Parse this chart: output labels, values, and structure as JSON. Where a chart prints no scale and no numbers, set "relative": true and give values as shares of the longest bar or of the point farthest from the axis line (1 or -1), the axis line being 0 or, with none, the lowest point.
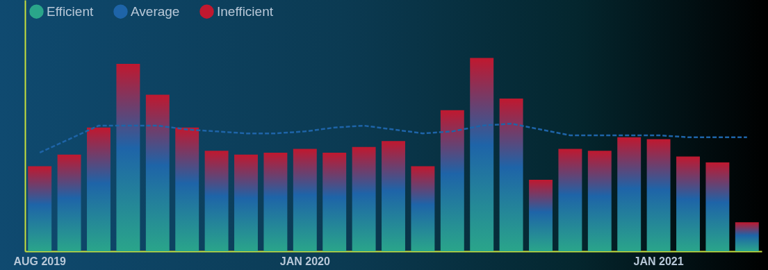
{
  "chart_data": {
    "type": "bar",
    "relative": true,
    "legend": "top left",
    "categories": [
      "AUG 2019",
      null,
      null,
      null,
      null,
      null,
      null,
      null,
      null,
      "JAN 2020",
      null,
      null,
      null,
      null,
      null,
      null,
      null,
      null,
      null,
      null,
      null,
      "JAN 2021",
      null,
      null,
      null
    ],
    "series": [
      {
        "name": "Efficient",
        "color": "#2aa58a",
        "values": [
          0.44,
          0.5,
          0.64,
          0.97,
          0.81,
          0.64,
          0.52,
          0.5,
          0.51,
          0.53,
          0.51,
          0.54,
          0.57,
          0.44,
          0.73,
          1,
          0.79,
          0.37,
          0.53,
          0.52,
          0.59,
          0.58,
          0.49,
          0.46,
          0.15
        ]
      },
      {
        "name": "Average",
        "type": "line",
        "color": "#1e64a8",
        "line_style": "dashed",
        "values": [
          0.51,
          0.58,
          0.65,
          0.65,
          0.65,
          0.63,
          0.62,
          0.61,
          0.61,
          0.62,
          0.64,
          0.65,
          0.63,
          0.61,
          0.62,
          0.65,
          0.66,
          0.63,
          0.6,
          0.6,
          0.6,
          0.6,
          0.59,
          0.59,
          0.59
        ]
      },
      {
        "name": "Inefficient",
        "color": "#c0182f",
        "values": [
          null,
          null,
          null,
          null,
          null,
          null,
          null,
          null,
          null,
          null,
          null,
          null,
          null,
          null,
          null,
          null,
          null,
          null,
          null,
          null,
          null,
          null,
          null,
          null,
          null
        ]
      }
    ]
  }
}
